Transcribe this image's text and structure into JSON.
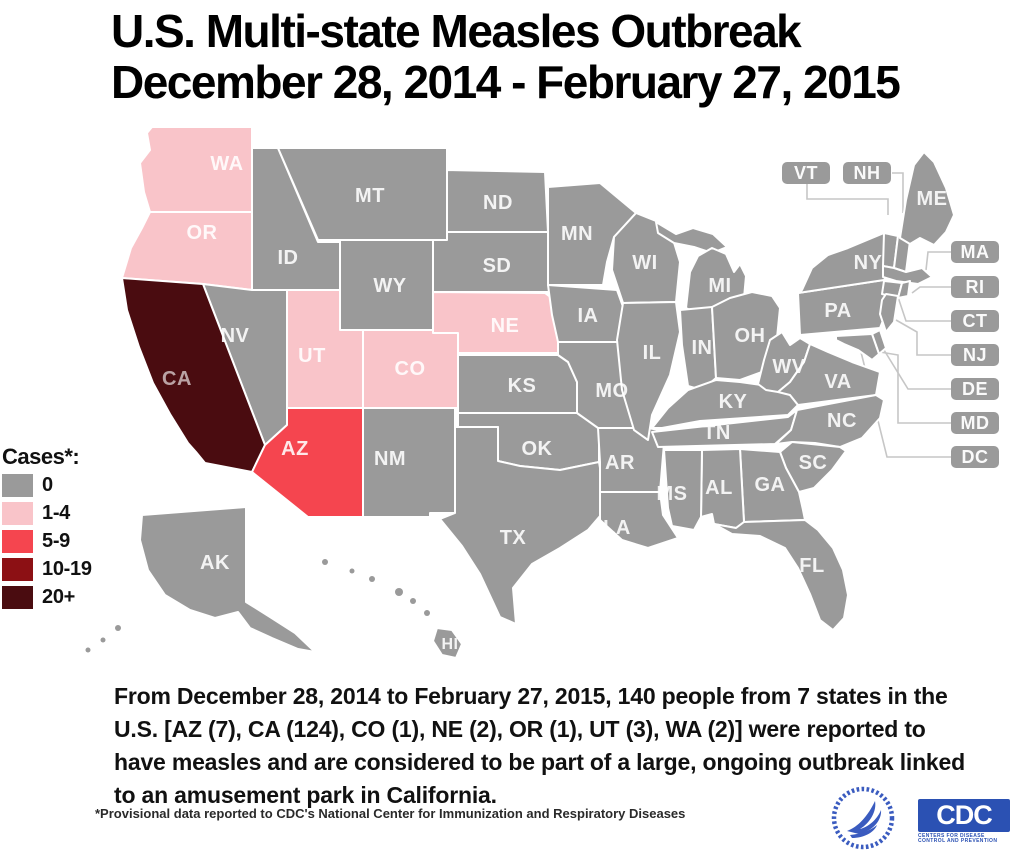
{
  "title": {
    "line1": "U.S. Multi-state Measles Outbreak",
    "line2": "December 28, 2014 - February 27, 2015"
  },
  "legend": {
    "title": "Cases*:",
    "items": [
      {
        "label": "0",
        "color": "#9a9a9a"
      },
      {
        "label": "1-4",
        "color": "#f9c4c9"
      },
      {
        "label": "5-9",
        "color": "#f5454f"
      },
      {
        "label": "10-19",
        "color": "#8c1014"
      },
      {
        "label": "20+",
        "color": "#4a0c10"
      }
    ]
  },
  "map": {
    "states": [
      {
        "id": "WA",
        "label": "WA",
        "cases": "1-4"
      },
      {
        "id": "OR",
        "label": "OR",
        "cases": "1-4"
      },
      {
        "id": "CA",
        "label": "CA",
        "cases": "20+"
      },
      {
        "id": "NV",
        "label": "NV",
        "cases": "0"
      },
      {
        "id": "ID",
        "label": "ID",
        "cases": "0"
      },
      {
        "id": "MT",
        "label": "MT",
        "cases": "0"
      },
      {
        "id": "WY",
        "label": "WY",
        "cases": "0"
      },
      {
        "id": "UT",
        "label": "UT",
        "cases": "1-4"
      },
      {
        "id": "CO",
        "label": "CO",
        "cases": "1-4"
      },
      {
        "id": "AZ",
        "label": "AZ",
        "cases": "5-9"
      },
      {
        "id": "NM",
        "label": "NM",
        "cases": "0"
      },
      {
        "id": "ND",
        "label": "ND",
        "cases": "0"
      },
      {
        "id": "SD",
        "label": "SD",
        "cases": "0"
      },
      {
        "id": "NE",
        "label": "NE",
        "cases": "1-4"
      },
      {
        "id": "KS",
        "label": "KS",
        "cases": "0"
      },
      {
        "id": "OK",
        "label": "OK",
        "cases": "0"
      },
      {
        "id": "TX",
        "label": "TX",
        "cases": "0"
      },
      {
        "id": "MN",
        "label": "MN",
        "cases": "0"
      },
      {
        "id": "IA",
        "label": "IA",
        "cases": "0"
      },
      {
        "id": "MO",
        "label": "MO",
        "cases": "0"
      },
      {
        "id": "AR",
        "label": "AR",
        "cases": "0"
      },
      {
        "id": "LA",
        "label": "LA",
        "cases": "0"
      },
      {
        "id": "WI",
        "label": "WI",
        "cases": "0"
      },
      {
        "id": "IL",
        "label": "IL",
        "cases": "0"
      },
      {
        "id": "MI",
        "label": "MI",
        "cases": "0"
      },
      {
        "id": "IN",
        "label": "IN",
        "cases": "0"
      },
      {
        "id": "OH",
        "label": "OH",
        "cases": "0"
      },
      {
        "id": "KY",
        "label": "KY",
        "cases": "0"
      },
      {
        "id": "TN",
        "label": "TN",
        "cases": "0"
      },
      {
        "id": "WV",
        "label": "WV",
        "cases": "0"
      },
      {
        "id": "VA",
        "label": "VA",
        "cases": "0"
      },
      {
        "id": "NC",
        "label": "NC",
        "cases": "0"
      },
      {
        "id": "SC",
        "label": "SC",
        "cases": "0"
      },
      {
        "id": "GA",
        "label": "GA",
        "cases": "0"
      },
      {
        "id": "AL",
        "label": "AL",
        "cases": "0"
      },
      {
        "id": "MS",
        "label": "MS",
        "cases": "0"
      },
      {
        "id": "FL",
        "label": "FL",
        "cases": "0"
      },
      {
        "id": "PA",
        "label": "PA",
        "cases": "0"
      },
      {
        "id": "NY",
        "label": "NY",
        "cases": "0"
      },
      {
        "id": "ME",
        "label": "ME",
        "cases": "0"
      },
      {
        "id": "VT",
        "label": "VT",
        "cases": "0",
        "callout": true
      },
      {
        "id": "NH",
        "label": "NH",
        "cases": "0",
        "callout": true
      },
      {
        "id": "MA",
        "label": "MA",
        "cases": "0",
        "callout": true
      },
      {
        "id": "RI",
        "label": "RI",
        "cases": "0",
        "callout": true
      },
      {
        "id": "CT",
        "label": "CT",
        "cases": "0",
        "callout": true
      },
      {
        "id": "NJ",
        "label": "NJ",
        "cases": "0",
        "callout": true
      },
      {
        "id": "DE",
        "label": "DE",
        "cases": "0",
        "callout": true
      },
      {
        "id": "MD",
        "label": "MD",
        "cases": "0",
        "callout": true
      },
      {
        "id": "DC",
        "label": "DC",
        "cases": "0",
        "callout": true
      },
      {
        "id": "AK",
        "label": "AK",
        "cases": "0"
      },
      {
        "id": "HI",
        "label": "HI",
        "cases": "0"
      }
    ]
  },
  "description": "From December 28, 2014 to February 27, 2015, 140 people from 7 states in the U.S. [AZ (7), CA (124), CO (1), NE (2), OR (1), UT (3), WA (2)] were reported to have measles and are considered to be part of a large, ongoing outbreak linked to an amusement park in California.",
  "footnote": "*Provisional data reported to CDC's National Center for Immunization and Respiratory Diseases",
  "logos": {
    "cdc_label": "CDC",
    "cdc_tagline": "CENTERS FOR DISEASE CONTROL AND PREVENTION"
  }
}
